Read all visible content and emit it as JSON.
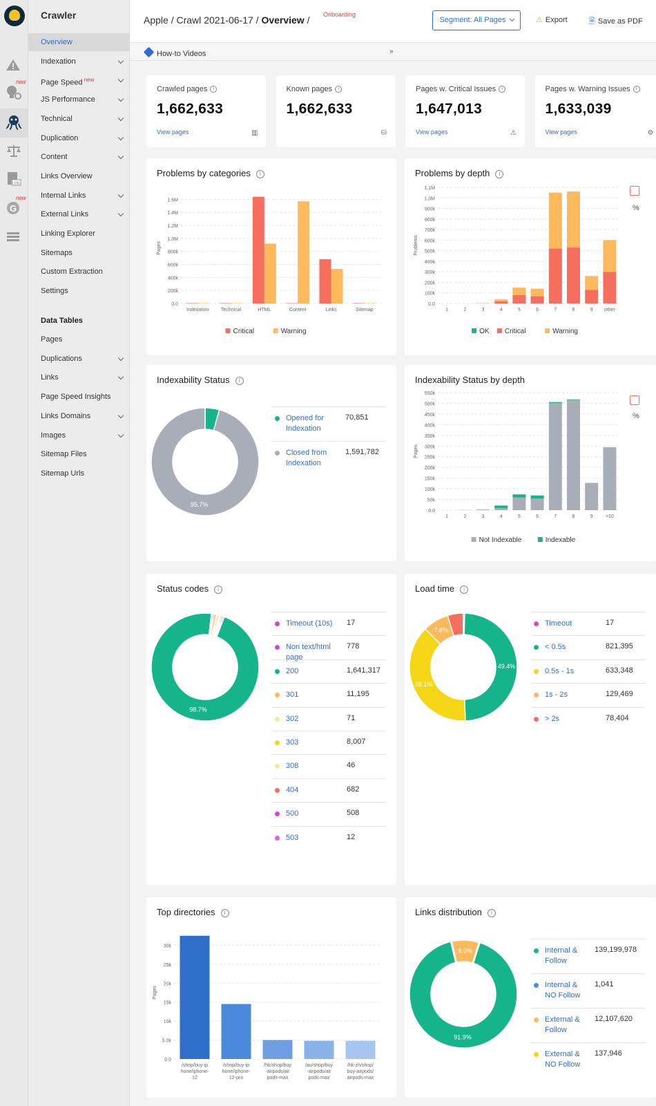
{
  "app": {
    "title": "Crawler"
  },
  "rail": {
    "new_badge": "new",
    "icons": [
      "warning-icon",
      "seo-settings-icon",
      "crawler-octopus-icon",
      "scales-icon",
      "log-file-icon",
      "google-icon",
      "data-table-icon"
    ]
  },
  "nav": {
    "items": [
      {
        "label": "Overview",
        "active": true,
        "chevron": false
      },
      {
        "label": "Indexation",
        "chevron": true
      },
      {
        "label": "Page Speed",
        "chevron": true,
        "sup": "new"
      },
      {
        "label": "JS Performance",
        "chevron": true
      },
      {
        "label": "Technical",
        "chevron": true
      },
      {
        "label": "Duplication",
        "chevron": true
      },
      {
        "label": "Content",
        "chevron": true
      },
      {
        "label": "Links Overview",
        "chevron": false
      },
      {
        "label": "Internal Links",
        "chevron": true
      },
      {
        "label": "External Links",
        "chevron": true
      },
      {
        "label": "Linking Explorer",
        "chevron": false
      },
      {
        "label": "Sitemaps",
        "chevron": false
      },
      {
        "label": "Custom Extraction",
        "chevron": false
      },
      {
        "label": "Settings",
        "chevron": false
      }
    ],
    "section_title": "Data Tables",
    "data_tables": [
      {
        "label": "Pages",
        "chevron": false
      },
      {
        "label": "Duplications",
        "chevron": true
      },
      {
        "label": "Links",
        "chevron": true
      },
      {
        "label": "Page Speed Insights",
        "chevron": false
      },
      {
        "label": "Links Domains",
        "chevron": true
      },
      {
        "label": "Images",
        "chevron": true
      },
      {
        "label": "Sitemap Files",
        "chevron": false
      },
      {
        "label": "Sitemap Urls",
        "chevron": false
      }
    ]
  },
  "header": {
    "crumb_1": "Apple /",
    "crumb_2": "Crawl 2021-06-17 /",
    "crumb_3": "Overview",
    "crumb_sep": "/",
    "onboarding": "Onboarding",
    "segment_label": "Segment: All Pages",
    "export_label": "Export",
    "pdf_label": "Save as PDF"
  },
  "howto": {
    "label": "How-to Videos"
  },
  "kpis": [
    {
      "label": "Crawled pages",
      "value": "1,662,633",
      "link": "View pages",
      "icon": "bar-chart-icon"
    },
    {
      "label": "Known pages",
      "value": "1,662,633",
      "link": "",
      "icon": "database-icon"
    },
    {
      "label": "Pages w. Critical Issues",
      "value": "1,647,013",
      "link": "View pages",
      "icon": "warning-triangle-icon"
    },
    {
      "label": "Pages w. Warning Issues",
      "value": "1,633,039",
      "link": "View pages",
      "icon": "bug-icon"
    }
  ],
  "colors": {
    "critical": "#f56e5e",
    "warning": "#fdb95c",
    "ok": "#16b48a",
    "notindex": "#a9adb8",
    "indexable": "#16b48a",
    "blue": "#2b6fd6",
    "timeout": "#d648c8",
    "yellow": "#f5d616",
    "lightyellow": "#fbe986",
    "lightblue": "#a6c5ef",
    "midblue": "#4a89dc",
    "darkblue": "#2e6fcb"
  },
  "chart_data": [
    {
      "id": "problems_by_categories",
      "type": "bar",
      "title": "Problems by categories",
      "ylabel": "Pages",
      "categories": [
        "Indexation",
        "Technical",
        "HTML",
        "Content",
        "Links",
        "Sitemap"
      ],
      "series": [
        {
          "name": "Critical",
          "values": [
            0,
            0,
            1640000,
            0,
            680000,
            0
          ]
        },
        {
          "name": "Warning",
          "values": [
            0,
            0,
            920000,
            1570000,
            530000,
            0
          ]
        }
      ],
      "ylim": [
        0,
        1700000
      ],
      "yticks": [
        "0.0",
        "200k",
        "400k",
        "600k",
        "800k",
        "1.0M",
        "1.2M",
        "1.4M",
        "1.6M"
      ],
      "legend": [
        "Critical",
        "Warning"
      ]
    },
    {
      "id": "problems_by_depth",
      "type": "bar",
      "stacked": true,
      "title": "Problems by depth",
      "ylabel": "Problems",
      "categories": [
        "1",
        "2",
        "3",
        "4",
        "5",
        "6",
        "7",
        "8",
        "9",
        "other"
      ],
      "series": [
        {
          "name": "OK",
          "values": [
            0,
            0,
            0,
            0,
            0,
            0,
            0,
            0,
            0,
            0
          ]
        },
        {
          "name": "Critical",
          "values": [
            0,
            0,
            2000,
            20000,
            80000,
            70000,
            520000,
            530000,
            130000,
            300000
          ]
        },
        {
          "name": "Warning",
          "values": [
            0,
            0,
            1000,
            20000,
            70000,
            70000,
            530000,
            530000,
            130000,
            300000
          ]
        }
      ],
      "ylim": [
        0,
        1100000
      ],
      "yticks": [
        "0.0",
        "100k",
        "200k",
        "300k",
        "400k",
        "500k",
        "600k",
        "700k",
        "800k",
        "900k",
        "1.0M",
        "1.1M"
      ],
      "legend": [
        "OK",
        "Critical",
        "Warning"
      ],
      "percent_toggle": "%"
    },
    {
      "id": "indexability_status",
      "type": "pie",
      "title": "Indexability Status",
      "slices": [
        {
          "label": "Opened for Indexation",
          "value": "70,851",
          "num": 70851,
          "color": "#16b48a"
        },
        {
          "label": "Closed from Indexation",
          "value": "1,591,782",
          "num": 1591782,
          "color": "#a9adb8"
        }
      ],
      "data_labels": [
        "95.7%"
      ]
    },
    {
      "id": "indexability_by_depth",
      "type": "bar",
      "stacked": true,
      "title": "Indexability Status by depth",
      "ylabel": "Pages",
      "categories": [
        "1",
        "2",
        "3",
        "4",
        "5",
        "6",
        "7",
        "8",
        "9",
        ">10"
      ],
      "series": [
        {
          "name": "Not Indexable",
          "values": [
            0,
            500,
            2000,
            10000,
            60000,
            55000,
            510000,
            525000,
            130000,
            300000
          ]
        },
        {
          "name": "Indexable",
          "values": [
            0,
            200,
            1000,
            12000,
            15000,
            15000,
            5000,
            3000,
            0,
            0
          ]
        }
      ],
      "ylim": [
        0,
        560000
      ],
      "yticks": [
        "0.0",
        "50k",
        "100k",
        "150k",
        "200k",
        "250k",
        "300k",
        "350k",
        "400k",
        "450k",
        "500k",
        "550k"
      ],
      "legend": [
        "Not Indexable",
        "Indexable"
      ],
      "percent_toggle": "%"
    },
    {
      "id": "status_codes",
      "type": "pie",
      "title": "Status codes",
      "slices": [
        {
          "label": "Timeout (10s)",
          "value": "17",
          "num": 17,
          "color": "#d648c8"
        },
        {
          "label": "Non text/html page",
          "value": "778",
          "num": 778,
          "color": "#d648c8"
        },
        {
          "label": "200",
          "value": "1,641,317",
          "num": 1641317,
          "color": "#16b48a"
        },
        {
          "label": "301",
          "value": "11,195",
          "num": 11195,
          "color": "#fdb95c"
        },
        {
          "label": "302",
          "value": "71",
          "num": 71,
          "color": "#fbe986"
        },
        {
          "label": "303",
          "value": "8,007",
          "num": 8007,
          "color": "#f5d616"
        },
        {
          "label": "308",
          "value": "46",
          "num": 46,
          "color": "#fbe986"
        },
        {
          "label": "404",
          "value": "682",
          "num": 682,
          "color": "#f56e5e"
        },
        {
          "label": "500",
          "value": "508",
          "num": 508,
          "color": "#d648c8"
        },
        {
          "label": "503",
          "value": "12",
          "num": 12,
          "color": "#e55ce0"
        }
      ],
      "data_labels": [
        "98.7%"
      ]
    },
    {
      "id": "load_time",
      "type": "pie",
      "title": "Load time",
      "slices": [
        {
          "label": "Timeout",
          "value": "17",
          "num": 17,
          "color": "#d648c8"
        },
        {
          "label": "< 0.5s",
          "value": "821,395",
          "num": 821395,
          "color": "#16b48a"
        },
        {
          "label": "0.5s - 1s",
          "value": "633,348",
          "num": 633348,
          "color": "#f5d616"
        },
        {
          "label": "1s - 2s",
          "value": "129,469",
          "num": 129469,
          "color": "#fdb95c"
        },
        {
          "label": "> 2s",
          "value": "78,404",
          "num": 78404,
          "color": "#f56e5e"
        }
      ],
      "data_labels": [
        "49.4%",
        "38.1%",
        "7.8%"
      ]
    },
    {
      "id": "top_directories",
      "type": "bar",
      "title": "Top directories",
      "ylabel": "Pages",
      "categories": [
        "/shop/buy-iphone/iphone-12",
        "/shop/buy-iphone/iphone-12-pro",
        "/hk/shop/buy-airpods/airpods-max",
        "/au/shop/buy-airpods/airpods-max",
        "/hk-zh/shop/buy-airpods/airpods-max"
      ],
      "category_lines": [
        [
          "/shop/buy-ip",
          "hone/iphone-",
          "12"
        ],
        [
          "/shop/buy-ip",
          "hone/iphone-",
          "12-pro"
        ],
        [
          "/hk/shop/buy",
          "-airpods/air",
          "pods-max"
        ],
        [
          "/au/shop/buy",
          "-airpods/air",
          "pods-max"
        ],
        [
          "/hk-zh/shop/",
          "buy-airpods/",
          "airpods-max"
        ]
      ],
      "values": [
        32500,
        14500,
        5000,
        4800,
        4800
      ],
      "bar_colors": [
        "#2e6fcb",
        "#4a89dc",
        "#6f9fe3",
        "#8ab2ea",
        "#a6c5ef"
      ],
      "ylim": [
        0,
        32000
      ],
      "yticks": [
        "0.0",
        "5.0k",
        "10k",
        "15k",
        "20k",
        "25k",
        "30k"
      ]
    },
    {
      "id": "links_distribution",
      "type": "pie",
      "title": "Links distribution",
      "slices": [
        {
          "label": "Internal & Follow",
          "value": "139,199,978",
          "num": 139199978,
          "color": "#16b48a"
        },
        {
          "label": "Internal & NO Follow",
          "value": "1,041",
          "num": 1041,
          "color": "#4a89dc"
        },
        {
          "label": "External & Follow",
          "value": "12,107,620",
          "num": 12107620,
          "color": "#fdb95c"
        },
        {
          "label": "External & NO Follow",
          "value": "137,946",
          "num": 137946,
          "color": "#f5d616"
        }
      ],
      "data_labels": [
        "91.9%",
        "8.0%"
      ]
    }
  ]
}
